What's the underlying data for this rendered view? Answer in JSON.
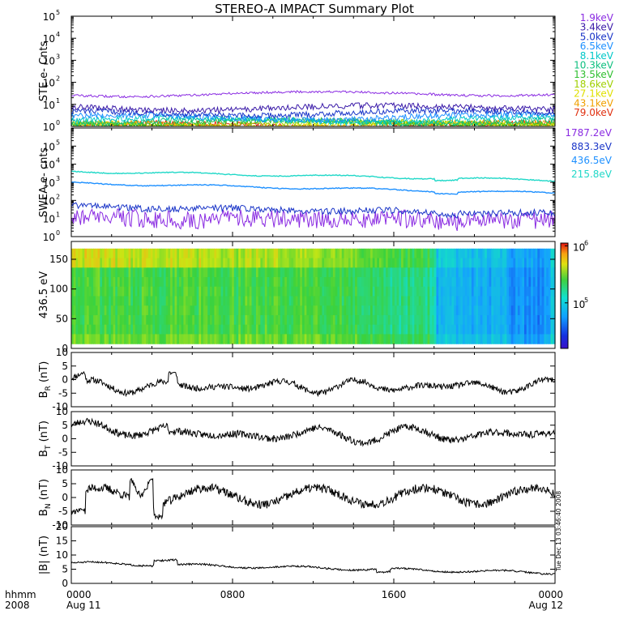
{
  "title": "STEREO-A IMPACT Summary Plot",
  "footer_left": {
    "line1": "hhmm",
    "line2": "2008"
  },
  "stamp": "Tue Dec 13 03:46:40 2008",
  "time_axis": {
    "start": "2008-08-11 00:00",
    "end": "2008-08-12 00:00",
    "ticks": [
      {
        "hour": 0,
        "label": "0000",
        "sub": "Aug 11"
      },
      {
        "hour": 8,
        "label": "0800",
        "sub": ""
      },
      {
        "hour": 16,
        "label": "1600",
        "sub": ""
      },
      {
        "hour": 24,
        "label": "0000",
        "sub": "Aug 12"
      }
    ]
  },
  "chart_data": [
    {
      "id": "ste",
      "type": "line",
      "ylabel": "STE e- Cnts",
      "yscale": "log",
      "ylim": [
        1,
        100000
      ],
      "ytick_exponents": [
        0,
        1,
        2,
        3,
        4,
        5
      ],
      "series": [
        {
          "name": "1.9keV",
          "color": "#8a2be2",
          "level": 30
        },
        {
          "name": "3.4keV",
          "color": "#3a1aa8",
          "level": 7
        },
        {
          "name": "5.0keV",
          "color": "#1a35c8",
          "level": 4
        },
        {
          "name": "6.5keV",
          "color": "#1e90ff",
          "level": 2.6
        },
        {
          "name": "8.1keV",
          "color": "#00c8c8",
          "level": 2
        },
        {
          "name": "10.3keV",
          "color": "#10c080",
          "level": 1.7
        },
        {
          "name": "13.5keV",
          "color": "#30c030",
          "level": 1.5
        },
        {
          "name": "18.6keV",
          "color": "#a0d000",
          "level": 1.3
        },
        {
          "name": "27.1keV",
          "color": "#e0e000",
          "level": 1.2
        },
        {
          "name": "43.1keV",
          "color": "#f0a000",
          "level": 1.15
        },
        {
          "name": "79.0keV",
          "color": "#e03010",
          "level": 1.1
        }
      ]
    },
    {
      "id": "swea",
      "type": "line",
      "ylabel": "SWEA e- cnts",
      "yscale": "log",
      "ylim": [
        1,
        1000000
      ],
      "ytick_exponents": [
        0,
        1,
        2,
        3,
        4,
        5
      ],
      "series": [
        {
          "name": "1787.2eV",
          "color": "#8a2be2",
          "start": 10,
          "end": 8
        },
        {
          "name": "883.3eV",
          "color": "#1a35c8",
          "start": 45,
          "end": 18
        },
        {
          "name": "436.5eV",
          "color": "#1e90ff",
          "start": 900,
          "end": 250
        },
        {
          "name": "215.8eV",
          "color": "#20d8c8",
          "start": 4000,
          "end": 1300
        }
      ]
    },
    {
      "id": "pad",
      "type": "heatmap",
      "ylabel": "436.5 eV",
      "ylim": [
        0,
        180
      ],
      "yticks": [
        0,
        50,
        100,
        150
      ],
      "colorbar": {
        "scale": "log",
        "ticks": [
          {
            "exp": 6,
            "label": "10"
          },
          {
            "exp": 5,
            "label": "10"
          }
        ]
      }
    },
    {
      "id": "br",
      "type": "line",
      "ylabel_base": "B",
      "ylabel_sub": "R",
      "ylabel_unit": " (nT)",
      "ylim": [
        -10,
        10
      ],
      "yticks": [
        -10,
        -5,
        0,
        5,
        10
      ],
      "color": "#000000"
    },
    {
      "id": "bt",
      "type": "line",
      "ylabel_base": "B",
      "ylabel_sub": "T",
      "ylabel_unit": " (nT)",
      "ylim": [
        -10,
        10
      ],
      "yticks": [
        -10,
        -5,
        0,
        5,
        10
      ],
      "color": "#000000"
    },
    {
      "id": "bn",
      "type": "line",
      "ylabel_base": "B",
      "ylabel_sub": "N",
      "ylabel_unit": " (nT)",
      "ylim": [
        -10,
        10
      ],
      "yticks": [
        -10,
        -5,
        0,
        5,
        10
      ],
      "color": "#000000"
    },
    {
      "id": "btot",
      "type": "line",
      "ylabel": "|B| (nT)",
      "ylim": [
        0,
        20
      ],
      "yticks": [
        0,
        5,
        10,
        15,
        20
      ],
      "color": "#000000"
    }
  ]
}
